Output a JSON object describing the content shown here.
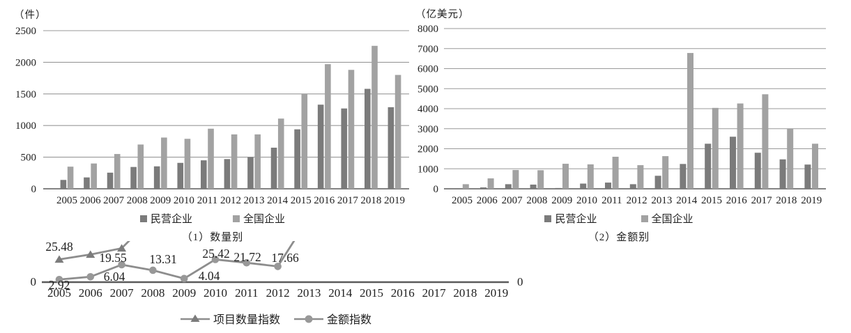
{
  "colors": {
    "private_bar": "#7b7b7b",
    "national_bar": "#a2a2a2",
    "gridline": "#999999",
    "axis_line": "#5a5a5a",
    "line_stroke": "#8d8d8d",
    "triangle_marker": "#7c7c7c",
    "circle_marker": "#989898",
    "text": "#1f1f1f"
  },
  "chart_data": [
    {
      "id": "quantity-chart",
      "type": "bar",
      "title": "（1）数量别",
      "unit_label": "（件）",
      "categories": [
        "2005",
        "2006",
        "2007",
        "2008",
        "2009",
        "2010",
        "2011",
        "2012",
        "2013",
        "2014",
        "2015",
        "2016",
        "2017",
        "2018",
        "2019"
      ],
      "series": [
        {
          "key": "private",
          "name": "民营企业",
          "values": [
            140,
            180,
            255,
            345,
            355,
            410,
            450,
            470,
            500,
            650,
            940,
            1330,
            1270,
            1580,
            1290
          ]
        },
        {
          "key": "national",
          "name": "全国企业",
          "values": [
            350,
            400,
            550,
            700,
            810,
            790,
            950,
            860,
            860,
            1110,
            1500,
            1970,
            1880,
            2260,
            1800
          ]
        }
      ],
      "ylim": [
        0,
        2500
      ],
      "yticks": [
        0,
        500,
        1000,
        1500,
        2000,
        2500
      ],
      "grid": true,
      "legend_position": "bottom"
    },
    {
      "id": "amount-chart",
      "type": "bar",
      "title": "（2）金额别",
      "unit_label": "（亿美元）",
      "categories": [
        "2005",
        "2006",
        "2007",
        "2008",
        "2009",
        "2010",
        "2011",
        "2012",
        "2013",
        "2014",
        "2015",
        "2016",
        "2017",
        "2018",
        "2019"
      ],
      "series": [
        {
          "key": "private",
          "name": "民营企业",
          "values": [
            30,
            70,
            230,
            210,
            40,
            260,
            310,
            230,
            650,
            1240,
            2250,
            2600,
            1800,
            1470,
            1210
          ]
        },
        {
          "key": "national",
          "name": "全国企业",
          "values": [
            230,
            520,
            940,
            930,
            1250,
            1220,
            1600,
            1180,
            1630,
            6780,
            4040,
            4260,
            4720,
            3000,
            2250
          ]
        }
      ],
      "ylim": [
        0,
        8000
      ],
      "yticks": [
        0,
        1000,
        2000,
        3000,
        4000,
        5000,
        6000,
        7000,
        8000
      ],
      "grid": true,
      "legend_position": "bottom"
    },
    {
      "id": "index-chart",
      "type": "line",
      "title": "",
      "categories": [
        "2005",
        "2006",
        "2007",
        "2008",
        "2009",
        "2010",
        "2011",
        "2012",
        "2013",
        "2014",
        "2015",
        "2016",
        "2017",
        "2018",
        "2019"
      ],
      "series": [
        {
          "key": "project-count-index",
          "name": "项目数量指数",
          "marker": "triangle",
          "values": [
            25.48,
            31,
            38,
            null,
            null,
            null,
            null,
            null,
            null,
            null,
            null,
            null,
            null,
            null,
            null
          ],
          "point_labels": [
            "25.48",
            "",
            "",
            "",
            "",
            "",
            "",
            "",
            "",
            "",
            "",
            "",
            "",
            "",
            ""
          ],
          "clipped_after": "2007"
        },
        {
          "key": "amount-index",
          "name": "金额指数",
          "marker": "circle",
          "values": [
            2.92,
            6.04,
            19.55,
            13.31,
            4.04,
            25.42,
            21.72,
            17.66,
            null,
            null,
            null,
            null,
            null,
            null,
            null
          ],
          "point_labels": [
            "2.92",
            "6.04",
            "19.55",
            "13.31",
            "4.04",
            "25.42",
            "21.72",
            "17.66",
            "",
            "",
            "",
            "",
            "",
            "",
            ""
          ],
          "clipped_after": "2012"
        }
      ],
      "axis_zero_label_left": "0",
      "axis_zero_label_right": "0",
      "ylim_visible": [
        0,
        46
      ],
      "clipped_top": true,
      "grid": false,
      "legend_position": "bottom"
    }
  ]
}
